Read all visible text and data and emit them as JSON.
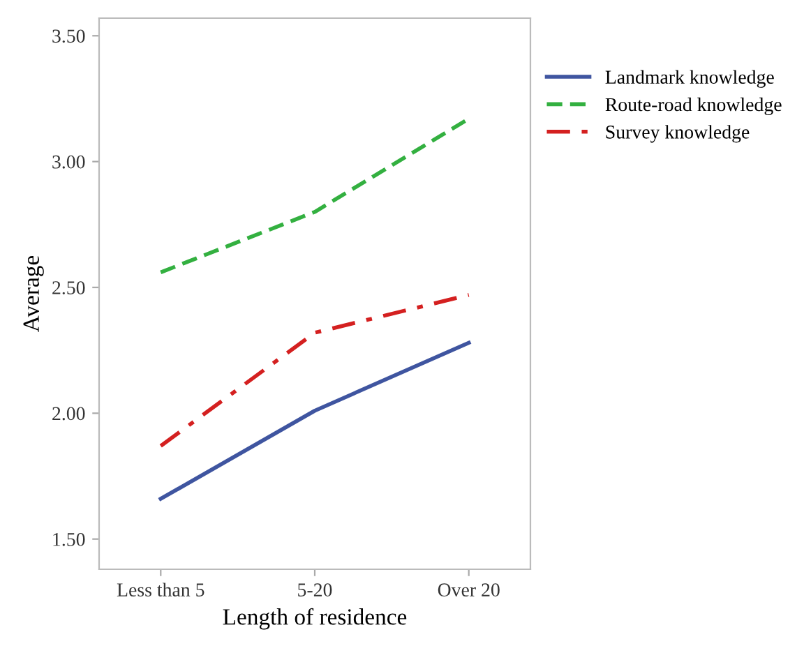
{
  "chart_data": {
    "type": "line",
    "xlabel": "Length of residence",
    "ylabel": "Average",
    "categories": [
      "Less than 5",
      "5-20",
      "Over 20"
    ],
    "series": [
      {
        "name": "Landmark knowledge",
        "color": "#3f55a0",
        "values": [
          1.66,
          2.01,
          2.28
        ],
        "line_style": "solid"
      },
      {
        "name": "Route-road knowledge",
        "color": "#33b040",
        "values": [
          2.56,
          2.8,
          3.17
        ],
        "line_style": "dashed"
      },
      {
        "name": "Survey knowledge",
        "color": "#d42020",
        "values": [
          1.87,
          2.32,
          2.47
        ],
        "line_style": "dashdot"
      }
    ],
    "ylim": [
      1.38,
      3.57
    ],
    "yticks": [
      {
        "value": 1.5,
        "label": "1.50"
      },
      {
        "value": 2.0,
        "label": "2.00"
      },
      {
        "value": 2.5,
        "label": "2.50"
      },
      {
        "value": 3.0,
        "label": "3.00"
      },
      {
        "value": 3.5,
        "label": "3.50"
      }
    ],
    "grid": false,
    "legend": "top right"
  }
}
